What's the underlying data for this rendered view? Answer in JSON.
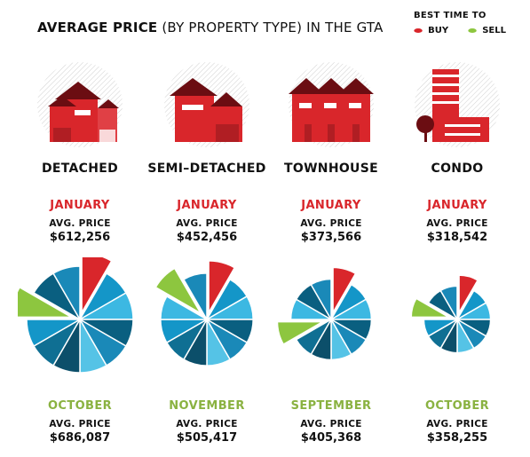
{
  "title": {
    "bold": "AVERAGE PRICE",
    "rest": "(BY PROPERTY TYPE) IN THE GTA"
  },
  "legend": {
    "title": "BEST TIME TO",
    "buy": "BUY",
    "sell": "SELL"
  },
  "colors": {
    "buy": "#d9262b",
    "sell": "#8dc63f",
    "month_red": "#d9262b",
    "month_green": "#8ab241",
    "blues": [
      "#0f6f93",
      "#1496c8",
      "#3cb8e2",
      "#0a5f80",
      "#1a89b8",
      "#55c3e6",
      "#0c4f6a"
    ]
  },
  "avg_label": "AVG. PRICE",
  "properties": [
    {
      "name": "DETACHED",
      "buy_month": "JANUARY",
      "buy_price": "$612,256",
      "sell_month": "OCTOBER",
      "sell_price": "$686,087"
    },
    {
      "name": "SEMI–DETACHED",
      "buy_month": "JANUARY",
      "buy_price": "$452,456",
      "sell_month": "NOVEMBER",
      "sell_price": "$505,417"
    },
    {
      "name": "TOWNHOUSE",
      "buy_month": "JANUARY",
      "buy_price": "$373,566",
      "sell_month": "SEPTEMBER",
      "sell_price": "$405,368"
    },
    {
      "name": "CONDO",
      "buy_month": "JANUARY",
      "buy_price": "$318,542",
      "sell_month": "OCTOBER",
      "sell_price": "$358,255"
    }
  ],
  "chart_data": [
    {
      "type": "pie",
      "slices": 12,
      "highlight_buy_index": 0,
      "highlight_sell_index": 9,
      "relative_size": 1.0
    },
    {
      "type": "pie",
      "slices": 12,
      "highlight_buy_index": 0,
      "highlight_sell_index": 10,
      "relative_size": 0.86
    },
    {
      "type": "pie",
      "slices": 12,
      "highlight_buy_index": 0,
      "highlight_sell_index": 8,
      "relative_size": 0.74
    },
    {
      "type": "pie",
      "slices": 12,
      "highlight_buy_index": 0,
      "highlight_sell_index": 9,
      "relative_size": 0.6
    }
  ]
}
